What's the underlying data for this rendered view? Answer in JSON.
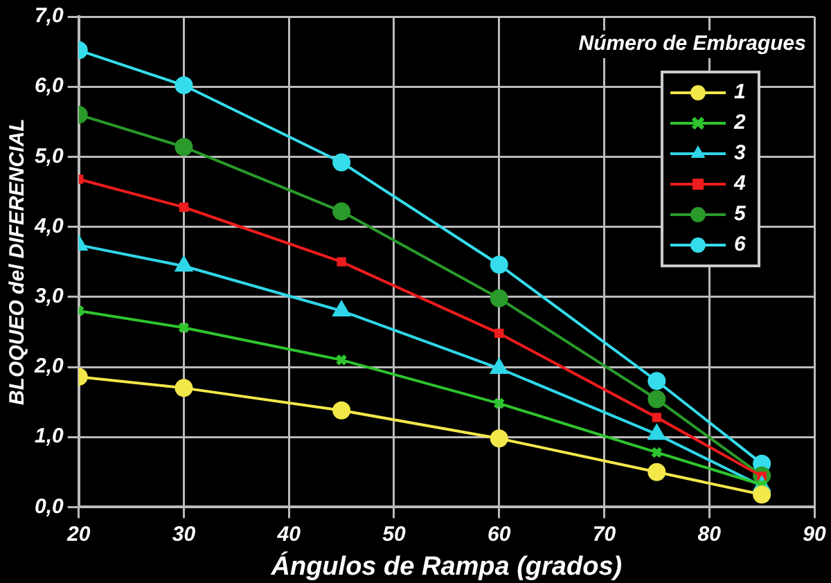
{
  "chart_data": {
    "type": "line",
    "xlabel": "Ángulos de Rampa (grados)",
    "ylabel": "BLOQUEO del DIFERENCIAL",
    "legend_title": "Número de Embragues",
    "x": [
      20,
      30,
      45,
      60,
      75,
      85
    ],
    "xlim": [
      20,
      90
    ],
    "xticks": [
      20,
      30,
      40,
      50,
      60,
      70,
      80,
      90
    ],
    "ylim": [
      0,
      7
    ],
    "yticks": [
      {
        "value": 0,
        "label": "0,0"
      },
      {
        "value": 1,
        "label": "1,0"
      },
      {
        "value": 2,
        "label": "2,0"
      },
      {
        "value": 3,
        "label": "3,0"
      },
      {
        "value": 4,
        "label": "4,0"
      },
      {
        "value": 5,
        "label": "5,0"
      },
      {
        "value": 6,
        "label": "6,0"
      },
      {
        "value": 7,
        "label": "7,0"
      }
    ],
    "grid": true,
    "legend": "top right",
    "series": [
      {
        "name": "1",
        "color": "#f2e84a",
        "marker": "circle",
        "values": [
          1.86,
          1.7,
          1.38,
          0.98,
          0.5,
          0.18
        ]
      },
      {
        "name": "2",
        "color": "#2ec42e",
        "marker": "cross",
        "values": [
          2.8,
          2.56,
          2.1,
          1.48,
          0.78,
          0.32
        ]
      },
      {
        "name": "3",
        "color": "#2fd6e8",
        "marker": "triangle",
        "values": [
          3.74,
          3.44,
          2.8,
          1.98,
          1.04,
          0.3
        ]
      },
      {
        "name": "4",
        "color": "#ee1c1c",
        "marker": "square",
        "values": [
          4.68,
          4.28,
          3.5,
          2.48,
          1.28,
          0.44
        ]
      },
      {
        "name": "5",
        "color": "#2a9a2a",
        "marker": "circle",
        "values": [
          5.6,
          5.14,
          4.22,
          2.98,
          1.54,
          0.45
        ]
      },
      {
        "name": "6",
        "color": "#35dcec",
        "marker": "circle",
        "values": [
          6.52,
          6.02,
          4.92,
          3.46,
          1.8,
          0.62
        ]
      }
    ]
  }
}
